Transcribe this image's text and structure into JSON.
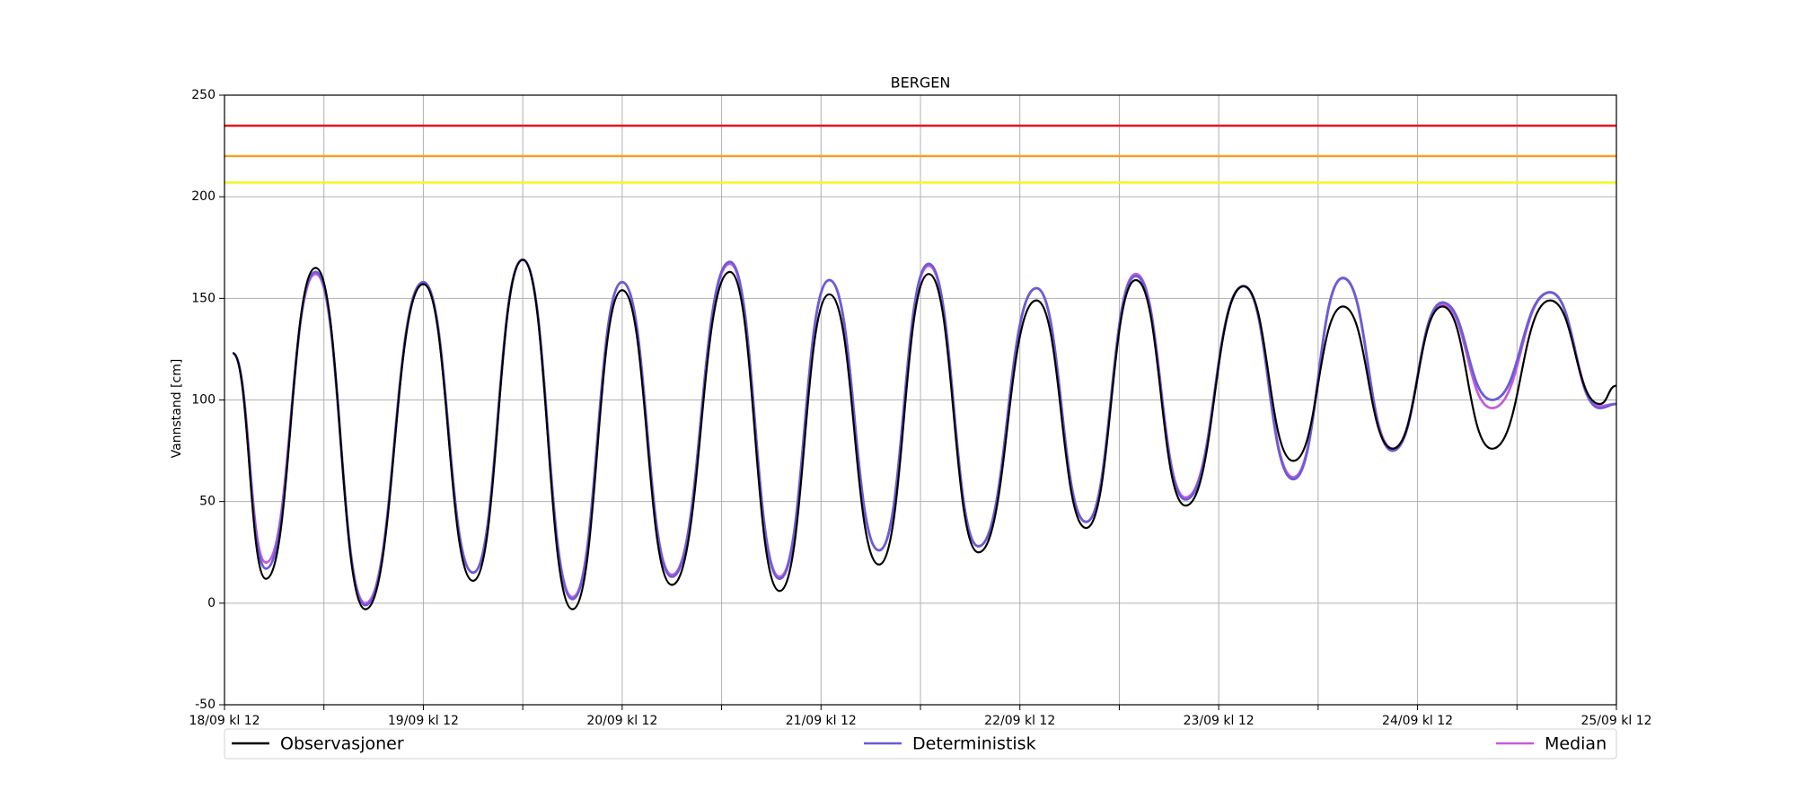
{
  "chart_data": {
    "type": "line",
    "title": "BERGEN",
    "y_label": "Vannstand [cm]",
    "x": [
      1,
      5,
      11,
      17,
      24,
      30,
      36,
      42,
      48,
      54,
      61,
      67,
      73,
      79,
      85,
      91,
      98,
      104,
      110,
      116,
      123,
      129,
      135,
      141,
      147,
      153,
      160,
      166,
      168
    ],
    "series": [
      {
        "name": "Observasjoner",
        "color": "#000000",
        "values": [
          123,
          12,
          165,
          -3,
          157,
          11,
          169,
          -3,
          154,
          9,
          163,
          6,
          152,
          19,
          162,
          25,
          149,
          37,
          159,
          48,
          156,
          70,
          146,
          76,
          146,
          76,
          149,
          98,
          107
        ]
      },
      {
        "name": "Deterministisk",
        "color": "#6a5cd6",
        "values": [
          123,
          17,
          163,
          -1,
          158,
          15,
          169,
          2,
          158,
          13,
          168,
          12,
          159,
          26,
          167,
          28,
          155,
          40,
          161,
          51,
          156,
          61,
          160,
          75,
          148,
          100,
          153,
          96,
          98
        ]
      },
      {
        "name": "Median",
        "color": "#c45bdc",
        "values": [
          123,
          20,
          162,
          0,
          158,
          15,
          169,
          3,
          158,
          14,
          167,
          13,
          159,
          26,
          166,
          28,
          155,
          40,
          162,
          52,
          156,
          62,
          160,
          76,
          147,
          96,
          153,
          97,
          98
        ]
      }
    ],
    "reference_lines": [
      {
        "value": 235,
        "color": "#e8141c"
      },
      {
        "value": 220,
        "color": "#f5a020"
      },
      {
        "value": 207,
        "color": "#f5f520"
      }
    ],
    "xlim": [
      0,
      168
    ],
    "xticks": [
      {
        "value": 0,
        "label": "18/09 kl 12"
      },
      {
        "value": 24,
        "label": "19/09 kl 12"
      },
      {
        "value": 48,
        "label": "20/09 kl 12"
      },
      {
        "value": 72,
        "label": "21/09 kl 12"
      },
      {
        "value": 96,
        "label": "22/09 kl 12"
      },
      {
        "value": 120,
        "label": "23/09 kl 12"
      },
      {
        "value": 144,
        "label": "24/09 kl 12"
      },
      {
        "value": 168,
        "label": "25/09 kl 12"
      }
    ],
    "xminor_ticks": [
      12,
      36,
      60,
      84,
      108,
      132,
      156
    ],
    "ylim": [
      -50,
      250
    ],
    "yticks": [
      -50,
      0,
      50,
      100,
      150,
      200,
      250
    ],
    "grid": true
  }
}
